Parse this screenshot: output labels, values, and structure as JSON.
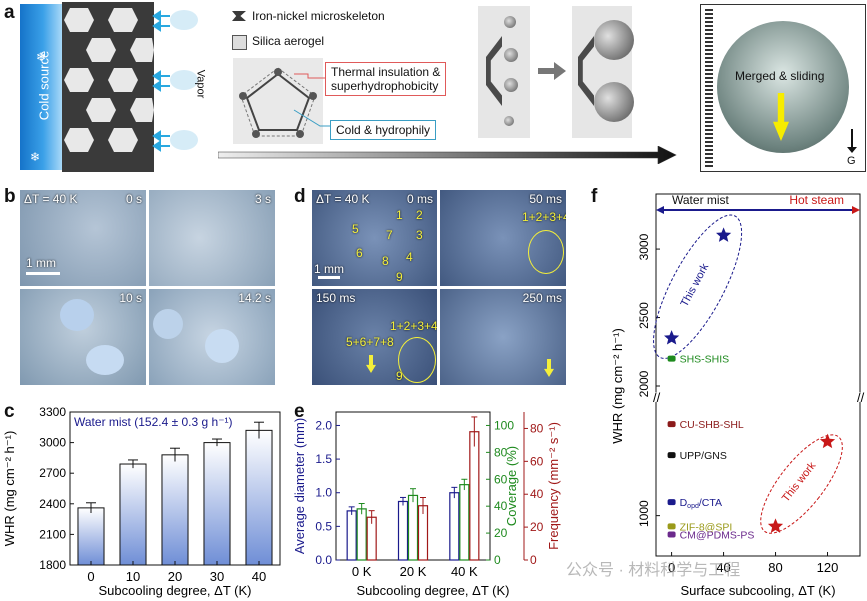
{
  "panels": {
    "a": "a",
    "b": "b",
    "c": "c",
    "d": "d",
    "e": "e",
    "f": "f"
  },
  "a": {
    "cold_source": "Cold source",
    "vapor": "Vapor",
    "legend_skeleton": "Iron-nickel microskeleton",
    "legend_aerogel": "Silica aerogel",
    "box_thermal_line1": "Thermal insulation &",
    "box_thermal_line2": "superhydrophobicity",
    "box_cold": "Cold & hydrophily",
    "merged": "Merged & sliding",
    "gravity": "G"
  },
  "b": {
    "dt": "ΔT = 40 K",
    "times": [
      "0 s",
      "3 s",
      "10 s",
      "14.2 s"
    ],
    "scale": "1 mm"
  },
  "d": {
    "dt": "ΔT = 40 K",
    "times": [
      "0 ms",
      "50 ms",
      "150 ms",
      "250 ms"
    ],
    "scale": "1 mm",
    "numbers_tl": [
      "1",
      "2",
      "3",
      "4",
      "5",
      "6",
      "7",
      "8",
      "9"
    ],
    "merge1": "1+2+3+4",
    "merge2": "1+2+3+4",
    "merge3": "5+6+7+8",
    "nine": "9"
  },
  "chart_data": [
    {
      "type": "bar",
      "panel": "c",
      "annotation": "Water mist (152.4 ± 0.3 g h⁻¹)",
      "categories": [
        "0",
        "10",
        "20",
        "30",
        "40"
      ],
      "values": [
        2360,
        2790,
        2880,
        3000,
        3120
      ],
      "errors": [
        50,
        40,
        65,
        35,
        80
      ],
      "xlabel": "Subcooling degree, ΔT (K)",
      "ylabel": "WHR (mg cm⁻² h⁻¹)",
      "ylim": [
        1800,
        3300
      ],
      "yticks": [
        "1800",
        "2100",
        "2400",
        "2700",
        "3000",
        "3300"
      ]
    },
    {
      "type": "bar",
      "panel": "e",
      "categories": [
        "0 K",
        "20 K",
        "40 K"
      ],
      "series": [
        {
          "name": "Average diameter (mm)",
          "axis": "left",
          "color": "#1a1a8c",
          "values": [
            0.73,
            0.87,
            1.0
          ],
          "errors": [
            0.06,
            0.06,
            0.08
          ]
        },
        {
          "name": "Coverage (%)",
          "axis": "right1",
          "color": "#1e8a1e",
          "values": [
            38,
            48,
            56
          ],
          "errors": [
            4,
            5,
            4
          ]
        },
        {
          "name": "Frequency (mm⁻² s⁻¹)",
          "axis": "right2",
          "color": "#a01818",
          "values": [
            26,
            33,
            78
          ],
          "errors": [
            4,
            5,
            9
          ]
        }
      ],
      "xlabel": "Subcooling degree, ΔT (K)",
      "ylabel_left": "Average diameter (mm)",
      "ylabel_right1": "Coverage (%)",
      "ylabel_right2": "Frequency (mm⁻² s⁻¹)",
      "yticks_left": [
        "0.0",
        "0.5",
        "1.0",
        "1.5",
        "2.0"
      ],
      "yticks_right1": [
        "0",
        "20",
        "40",
        "60",
        "80",
        "100"
      ],
      "yticks_right2": [
        "0",
        "20",
        "40",
        "60",
        "80"
      ]
    },
    {
      "type": "scatter",
      "panel": "f",
      "xlabel": "Surface subcooling, ΔT (K)",
      "ylabel": "WHR (mg cm⁻² h⁻¹)",
      "xticks": [
        "0",
        "40",
        "80",
        "120"
      ],
      "yticks_upper": [
        "2000",
        "2500",
        "3000"
      ],
      "yticks_lower": [
        "1000"
      ],
      "band_left": "Water mist",
      "band_right": "Hot steam",
      "ellipse_label_1": "This work",
      "ellipse_label_2": "This work",
      "this_work_mist": [
        {
          "x": 0,
          "y": 2350
        },
        {
          "x": 40,
          "y": 3100
        }
      ],
      "this_work_steam": [
        {
          "x": 80,
          "y": 920
        },
        {
          "x": 120,
          "y": 1550
        }
      ],
      "references": [
        {
          "label": "SHS-SHIS",
          "x": 0,
          "y": 2200,
          "color": "#1e8a1e"
        },
        {
          "label": "CU-SHB-SHL",
          "x": 0,
          "y": 1680,
          "color": "#8b1a1a"
        },
        {
          "label": "UPP/GNS",
          "x": 0,
          "y": 1450,
          "color": "#111111"
        },
        {
          "label": "D",
          "label_sub": "opd",
          "label_tail": "/CTA",
          "x": 0,
          "y": 1100,
          "color": "#1a1a8c"
        },
        {
          "label": "ZIF-8@SPI",
          "x": 0,
          "y": 920,
          "color": "#9a9a1a"
        },
        {
          "label": "CM@PDMS-PS",
          "x": 0,
          "y": 860,
          "color": "#6b2a8c"
        }
      ],
      "colors": {
        "mist": "#1a1a8c",
        "steam": "#c81818"
      }
    }
  ],
  "watermark": "公众号 · 材料科学与工程"
}
